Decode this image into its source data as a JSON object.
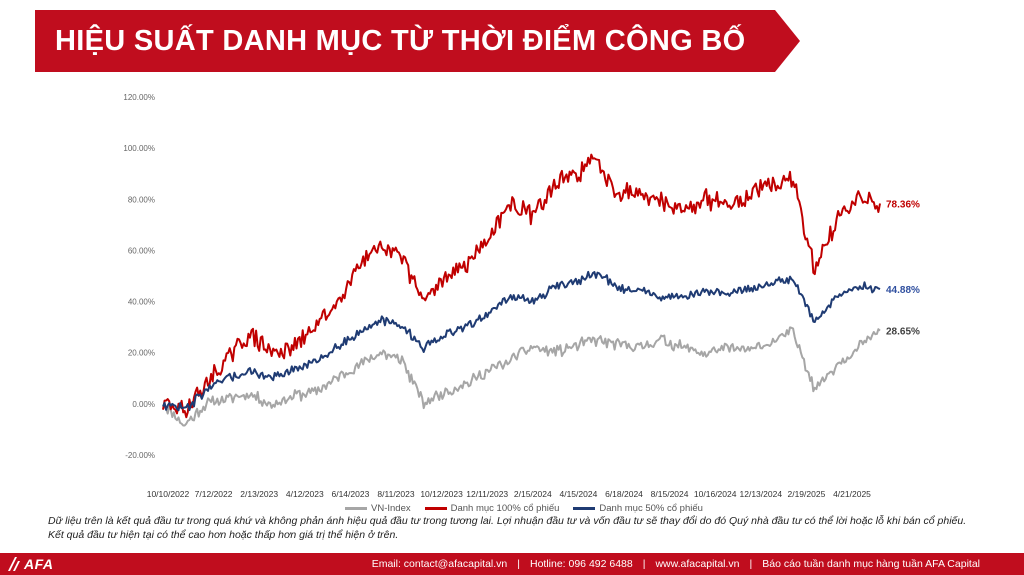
{
  "header": {
    "title": "HIỆU SUẤT DANH MỤC TỪ THỜI ĐIỂM CÔNG BỐ"
  },
  "colors": {
    "brand_red": "#c00d1e",
    "vn_index": "#a6a6a6",
    "portfolio_100": "#c00000",
    "portfolio_50": "#1f3b73"
  },
  "chart_data": {
    "type": "line",
    "title": "",
    "xlabel": "",
    "ylabel": "",
    "ylim": [
      -0.2,
      1.2
    ],
    "y_ticks": [
      "120.00%",
      "100.00%",
      "80.00%",
      "60.00%",
      "40.00%",
      "20.00%",
      "0.00%",
      "-20.00%"
    ],
    "x_ticks": [
      "10/10/2022",
      "7/12/2022",
      "2/13/2023",
      "4/12/2023",
      "6/14/2023",
      "8/11/2023",
      "10/12/2023",
      "12/11/2023",
      "2/15/2024",
      "4/15/2024",
      "6/18/2024",
      "8/15/2024",
      "10/16/2024",
      "12/13/2024",
      "2/19/2025",
      "4/21/2025"
    ],
    "x_points": [
      "10/10/2022",
      "11/2022",
      "12/2022",
      "1/2023",
      "2/13/2023",
      "3/2023",
      "4/12/2023",
      "5/2023",
      "6/14/2023",
      "7/2023",
      "8/11/2023",
      "9/2023",
      "10/12/2023",
      "11/2023",
      "12/11/2023",
      "1/2024",
      "2/15/2024",
      "3/2024",
      "4/15/2024",
      "5/2024",
      "6/18/2024",
      "7/2024",
      "8/15/2024",
      "9/2024",
      "10/16/2024",
      "11/2024",
      "12/13/2024",
      "1/2025",
      "2/19/2025",
      "3/2025",
      "4/10/2025",
      "4/21/2025",
      "5/2025",
      "6/2025"
    ],
    "legend_position": "bottom",
    "series": [
      {
        "name": "VN-Index",
        "color": "#a6a6a6",
        "end_label": "28.65%",
        "values": [
          0.0,
          -0.08,
          0.0,
          0.02,
          0.04,
          0.0,
          0.03,
          0.05,
          0.1,
          0.15,
          0.2,
          0.17,
          0.0,
          0.05,
          0.08,
          0.13,
          0.17,
          0.22,
          0.2,
          0.23,
          0.25,
          0.23,
          0.22,
          0.25,
          0.22,
          0.2,
          0.22,
          0.21,
          0.24,
          0.28,
          0.06,
          0.15,
          0.22,
          0.2865
        ]
      },
      {
        "name": "Danh mục 100% cổ phiếu",
        "color": "#c00000",
        "end_label": "78.36%",
        "values": [
          0.0,
          -0.03,
          0.08,
          0.18,
          0.27,
          0.2,
          0.22,
          0.3,
          0.4,
          0.55,
          0.6,
          0.58,
          0.4,
          0.5,
          0.55,
          0.65,
          0.78,
          0.74,
          0.85,
          0.9,
          0.95,
          0.82,
          0.84,
          0.78,
          0.76,
          0.8,
          0.78,
          0.82,
          0.85,
          0.88,
          0.52,
          0.72,
          0.8,
          0.7836
        ]
      },
      {
        "name": "Danh mục 50% cổ phiếu",
        "color": "#1f3b73",
        "end_label": "44.88%",
        "values": [
          0.0,
          -0.02,
          0.05,
          0.1,
          0.13,
          0.1,
          0.13,
          0.17,
          0.22,
          0.28,
          0.33,
          0.3,
          0.22,
          0.27,
          0.3,
          0.36,
          0.42,
          0.4,
          0.45,
          0.48,
          0.51,
          0.45,
          0.44,
          0.42,
          0.42,
          0.44,
          0.43,
          0.45,
          0.47,
          0.49,
          0.32,
          0.42,
          0.46,
          0.4488
        ]
      }
    ]
  },
  "disclaimer": {
    "line1": "Dữ liệu trên là kết quả đầu tư trong quá khứ và không phản ánh hiệu quả đầu tư trong tương lai. Lợi nhuận đầu tư và vốn đầu tư sẽ thay đổi do đó Quý nhà đầu tư có thể lời hoặc lỗ khi bán cổ phiếu.",
    "line2": "Kết quả đầu tư hiện tại có thể cao hơn hoặc thấp hơn giá trị thể hiện ở trên."
  },
  "footer": {
    "logo": "AFA",
    "email": "Email: contact@afacapital.vn",
    "hotline": "Hotline: 096 492 6488",
    "website": "www.afacapital.vn",
    "report": "Báo cáo tuần danh mục hàng tuần AFA Capital"
  }
}
